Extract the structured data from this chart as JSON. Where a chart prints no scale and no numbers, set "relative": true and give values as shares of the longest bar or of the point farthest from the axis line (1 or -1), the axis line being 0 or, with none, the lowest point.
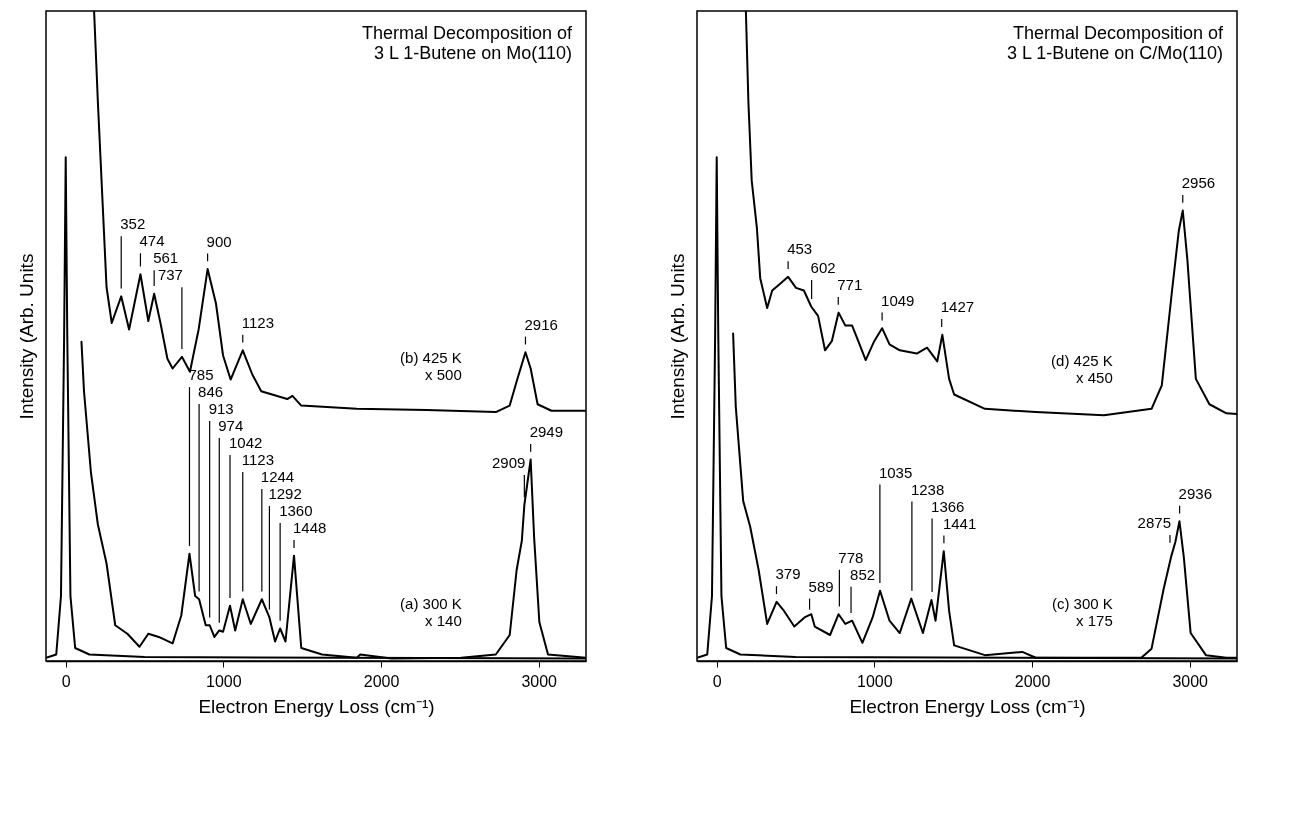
{
  "chart_data": [
    {
      "type": "line",
      "relative": true,
      "title": "Thermal Decomposition of\n3 L 1-Butene on Mo(110)",
      "xlabel": "Electron Energy Loss (cm⁻¹)",
      "ylabel": "Intensity (Arb. Units",
      "xlim": [
        -125,
        3300
      ],
      "xticks": [
        0,
        1000,
        2000,
        3000
      ],
      "grid": false,
      "series": [
        {
          "color": "#000000",
          "x": [
            -125,
            -60,
            -30,
            -10,
            0,
            10,
            30,
            60,
            150,
            500,
            3300
          ],
          "values": [
            0.005,
            0.01,
            0.1,
            0.5,
            0.775,
            0.5,
            0.1,
            0.02,
            0.01,
            0.006,
            0.004
          ]
        },
        {
          "name": "(b) 425 K\nx 500",
          "color": "#000000",
          "x": [
            180,
            204,
            233,
            259,
            292,
            352,
            402,
            474,
            524,
            561,
            601,
            645,
            678,
            737,
            788,
            843,
            900,
            953,
            998,
            1046,
            1123,
            1185,
            1240,
            1405,
            1438,
            1494,
            1846,
            2287,
            2728,
            2816,
            2860,
            2916,
            2949,
            2993,
            3081,
            3300
          ],
          "values": [
            1.0,
            0.86,
            0.71,
            0.575,
            0.52,
            0.561,
            0.51,
            0.595,
            0.523,
            0.565,
            0.52,
            0.465,
            0.45,
            0.468,
            0.445,
            0.51,
            0.603,
            0.55,
            0.47,
            0.433,
            0.478,
            0.44,
            0.415,
            0.403,
            0.408,
            0.393,
            0.388,
            0.386,
            0.383,
            0.393,
            0.43,
            0.475,
            0.45,
            0.395,
            0.385,
            0.385
          ]
        },
        {
          "name": "(a) 300 K\nx 140",
          "color": "#000000",
          "x": [
            100,
            116,
            160,
            204,
            259,
            314,
            391,
            468,
            524,
            590,
            678,
            733,
            785,
            821,
            846,
            888,
            913,
            943,
            974,
            998,
            1042,
            1075,
            1123,
            1174,
            1244,
            1292,
            1328,
            1360,
            1394,
            1448,
            1494,
            1626,
            1846,
            1868,
            2067,
            2508,
            2728,
            2816,
            2860,
            2893,
            2909,
            2949,
            2971,
            3004,
            3059,
            3300
          ],
          "values": [
            0.491,
            0.415,
            0.29,
            0.21,
            0.15,
            0.055,
            0.042,
            0.022,
            0.042,
            0.037,
            0.027,
            0.07,
            0.165,
            0.1,
            0.095,
            0.055,
            0.055,
            0.037,
            0.047,
            0.045,
            0.085,
            0.047,
            0.095,
            0.057,
            0.095,
            0.067,
            0.03,
            0.05,
            0.03,
            0.162,
            0.02,
            0.01,
            0.005,
            0.01,
            0.004,
            0.005,
            0.01,
            0.04,
            0.14,
            0.185,
            0.24,
            0.31,
            0.19,
            0.06,
            0.01,
            0.005
          ]
        }
      ],
      "annotations": [
        {
          "text": "352",
          "x": 352,
          "y": 0.561
        },
        {
          "text": "474",
          "x": 474,
          "y": 0.595
        },
        {
          "text": "737",
          "x": 737,
          "y": 0.468
        },
        {
          "text": "561",
          "x": 561,
          "y": 0.565
        },
        {
          "text": "900",
          "x": 900,
          "y": 0.603
        },
        {
          "text": "1123",
          "x": 1123,
          "y": 0.478
        },
        {
          "text": "2916",
          "x": 2916,
          "y": 0.475
        },
        {
          "text": "1123",
          "x": 1123,
          "y": 0.095
        },
        {
          "text": "1042",
          "x": 1042,
          "y": 0.085
        },
        {
          "text": "974",
          "x": 974,
          "y": 0.047
        },
        {
          "text": "913",
          "x": 913,
          "y": 0.055
        },
        {
          "text": "846",
          "x": 846,
          "y": 0.095
        },
        {
          "text": "785",
          "x": 785,
          "y": 0.165
        },
        {
          "text": "1244",
          "x": 1244,
          "y": 0.095
        },
        {
          "text": "1292",
          "x": 1292,
          "y": 0.067
        },
        {
          "text": "1360",
          "x": 1360,
          "y": 0.05
        },
        {
          "text": "1448",
          "x": 1448,
          "y": 0.162
        },
        {
          "text": "2949",
          "x": 2949,
          "y": 0.31
        },
        {
          "text": "2909",
          "x": 2909,
          "y": 0.24
        }
      ]
    },
    {
      "type": "line",
      "relative": true,
      "title": "Thermal Decomposition of\n3 L 1-Butene on C/Mo(110)",
      "xlabel": "Electron Energy Loss (cm⁻¹)",
      "ylabel": "Intensity (Arb. Units",
      "xlim": [
        -125,
        3300
      ],
      "xticks": [
        0,
        1000,
        2000,
        3000
      ],
      "grid": false,
      "series": [
        {
          "color": "#000000",
          "x": [
            -125,
            -60,
            -30,
            -10,
            0,
            10,
            30,
            60,
            150,
            500,
            3300
          ],
          "values": [
            0.005,
            0.01,
            0.1,
            0.5,
            0.775,
            0.5,
            0.1,
            0.02,
            0.01,
            0.006,
            0.004
          ]
        },
        {
          "name": "(d) 425 K\nx 450",
          "color": "#000000",
          "x": [
            185,
            201,
            222,
            255,
            276,
            320,
            352,
            395,
            453,
            503,
            553,
            600,
            643,
            687,
            730,
            773,
            816,
            859,
            898,
            945,
            999,
            1049,
            1096,
            1161,
            1269,
            1334,
            1399,
            1431,
            1474,
            1506,
            1701,
            2024,
            2456,
            2758,
            2823,
            2888,
            2931,
            2956,
            2985,
            3039,
            3125,
            3233,
            3300
          ],
          "values": [
            1.0,
            0.86,
            0.739,
            0.666,
            0.589,
            0.543,
            0.57,
            0.579,
            0.591,
            0.574,
            0.57,
            0.545,
            0.531,
            0.478,
            0.492,
            0.536,
            0.516,
            0.516,
            0.492,
            0.463,
            0.492,
            0.512,
            0.487,
            0.478,
            0.473,
            0.482,
            0.461,
            0.502,
            0.434,
            0.41,
            0.388,
            0.383,
            0.378,
            0.388,
            0.424,
            0.57,
            0.662,
            0.693,
            0.618,
            0.434,
            0.395,
            0.381,
            0.38
          ]
        },
        {
          "name": "(c) 300 K\nx 175",
          "color": "#000000",
          "x": [
            104,
            121,
            168,
            212,
            266,
            320,
            380,
            427,
            492,
            557,
            600,
            622,
            719,
            773,
            816,
            859,
            924,
            989,
            1036,
            1096,
            1161,
            1234,
            1308,
            1362,
            1388,
            1440,
            1474,
            1506,
            1701,
            1938,
            2024,
            2456,
            2693,
            2758,
            2834,
            2883,
            2909,
            2935,
            2963,
            3006,
            3103,
            3233,
            3300
          ],
          "values": [
            0.504,
            0.391,
            0.246,
            0.207,
            0.14,
            0.057,
            0.091,
            0.077,
            0.053,
            0.067,
            0.072,
            0.053,
            0.04,
            0.072,
            0.057,
            0.062,
            0.028,
            0.067,
            0.108,
            0.062,
            0.043,
            0.096,
            0.043,
            0.094,
            0.062,
            0.169,
            0.077,
            0.024,
            0.009,
            0.014,
            0.005,
            0.005,
            0.005,
            0.019,
            0.11,
            0.161,
            0.183,
            0.215,
            0.159,
            0.043,
            0.009,
            0.005,
            0.005
          ]
        }
      ],
      "annotations": [
        {
          "text": "453",
          "x": 453,
          "y": 0.591
        },
        {
          "text": "602",
          "x": 602,
          "y": 0.545
        },
        {
          "text": "771",
          "x": 771,
          "y": 0.536
        },
        {
          "text": "1049",
          "x": 1049,
          "y": 0.512
        },
        {
          "text": "1427",
          "x": 1427,
          "y": 0.502
        },
        {
          "text": "2956",
          "x": 2956,
          "y": 0.693
        },
        {
          "text": "1035",
          "x": 1035,
          "y": 0.108
        },
        {
          "text": "379",
          "x": 379,
          "y": 0.091
        },
        {
          "text": "1238",
          "x": 1238,
          "y": 0.096
        },
        {
          "text": "852",
          "x": 852,
          "y": 0.062
        },
        {
          "text": "1366",
          "x": 1366,
          "y": 0.094
        },
        {
          "text": "778",
          "x": 778,
          "y": 0.072
        },
        {
          "text": "1441",
          "x": 1441,
          "y": 0.169
        },
        {
          "text": "589",
          "x": 589,
          "y": 0.067
        },
        {
          "text": "2936",
          "x": 2936,
          "y": 0.215
        },
        {
          "text": "2875",
          "x": 2875,
          "y": 0.17
        }
      ]
    }
  ]
}
